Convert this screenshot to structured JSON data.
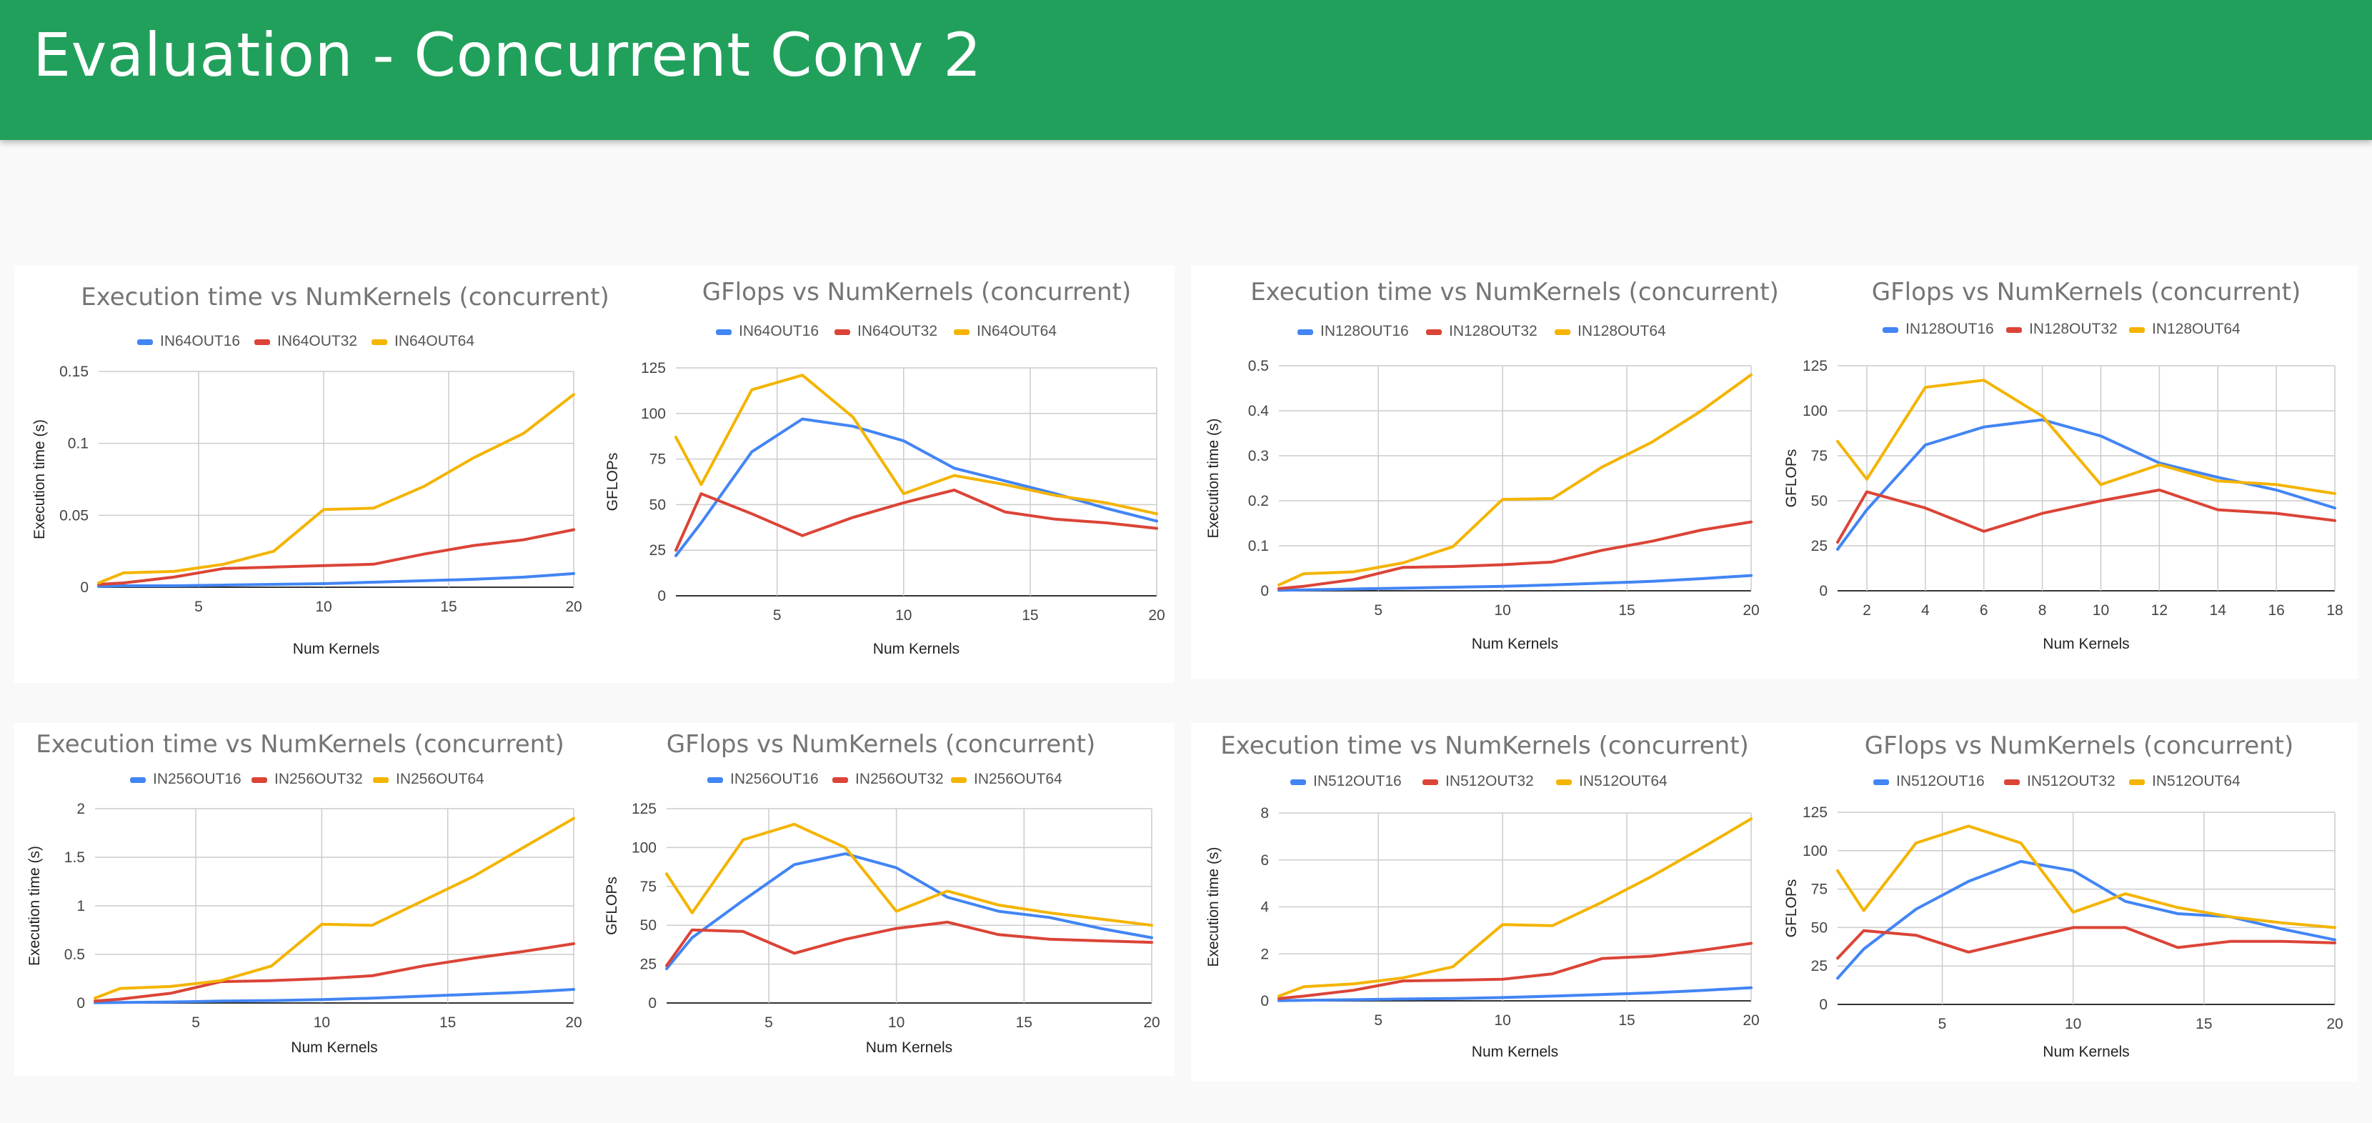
{
  "page": {
    "title": "Evaluation - Concurrent Conv 2"
  },
  "colors": {
    "s16": "#4285f4",
    "s32": "#db4437",
    "s64": "#f4b400",
    "header": "#21a05c"
  },
  "chart_data": [
    {
      "type": "line",
      "title": "Execution time vs NumKernels (concurrent)",
      "xlabel": "Num Kernels",
      "ylabel": "Execution time (s)",
      "xlim": [
        1,
        20
      ],
      "ylim": [
        0,
        0.15
      ],
      "xticks": [
        5,
        10,
        15,
        20
      ],
      "yticks": [
        0,
        0.05,
        0.1,
        0.15
      ],
      "ytick_labels": [
        "0",
        "0.05",
        "0.1",
        "0.15"
      ],
      "x": [
        1,
        2,
        4,
        6,
        8,
        10,
        12,
        14,
        16,
        18,
        20
      ],
      "series": [
        {
          "name": "IN64OUT16",
          "values": [
            0.0005,
            0.001,
            0.001,
            0.0015,
            0.002,
            0.0025,
            0.0035,
            0.0045,
            0.0055,
            0.007,
            0.0095
          ]
        },
        {
          "name": "IN64OUT32",
          "values": [
            0.002,
            0.003,
            0.007,
            0.013,
            0.014,
            0.015,
            0.016,
            0.023,
            0.029,
            0.033,
            0.04
          ]
        },
        {
          "name": "IN64OUT64",
          "values": [
            0.003,
            0.01,
            0.011,
            0.016,
            0.025,
            0.054,
            0.055,
            0.07,
            0.09,
            0.107,
            0.134
          ]
        }
      ]
    },
    {
      "type": "line",
      "title": "GFlops vs NumKernels (concurrent)",
      "xlabel": "Num Kernels",
      "ylabel": "GFLOPs",
      "xlim": [
        1,
        20
      ],
      "ylim": [
        0,
        125
      ],
      "xticks": [
        5,
        10,
        15,
        20
      ],
      "yticks": [
        0,
        25,
        50,
        75,
        100,
        125
      ],
      "ytick_labels": [
        "0",
        "25",
        "50",
        "75",
        "100",
        "125"
      ],
      "x": [
        1,
        2,
        4,
        6,
        8,
        10,
        12,
        14,
        16,
        18,
        20
      ],
      "series": [
        {
          "name": "IN64OUT16",
          "values": [
            22,
            40,
            79,
            97,
            93,
            85,
            70,
            63,
            56,
            48,
            41
          ]
        },
        {
          "name": "IN64OUT32",
          "values": [
            25,
            56,
            45,
            33,
            43,
            51,
            58,
            46,
            42,
            40,
            37
          ]
        },
        {
          "name": "IN64OUT64",
          "values": [
            87,
            61,
            113,
            121,
            98,
            56,
            66,
            61,
            55,
            51,
            45
          ]
        }
      ]
    },
    {
      "type": "line",
      "title": "Execution time vs NumKernels (concurrent)",
      "xlabel": "Num Kernels",
      "ylabel": "Execution time (s)",
      "xlim": [
        1,
        20
      ],
      "ylim": [
        0,
        0.5
      ],
      "xticks": [
        5,
        10,
        15,
        20
      ],
      "yticks": [
        0,
        0.1,
        0.2,
        0.3,
        0.4,
        0.5
      ],
      "ytick_labels": [
        "0",
        "0.1",
        "0.2",
        "0.3",
        "0.4",
        "0.5"
      ],
      "x": [
        1,
        2,
        4,
        6,
        8,
        10,
        12,
        14,
        16,
        18,
        20
      ],
      "series": [
        {
          "name": "IN128OUT16",
          "values": [
            0.001,
            0.002,
            0.004,
            0.006,
            0.008,
            0.01,
            0.013,
            0.017,
            0.021,
            0.027,
            0.034
          ]
        },
        {
          "name": "IN128OUT32",
          "values": [
            0.005,
            0.01,
            0.025,
            0.052,
            0.054,
            0.058,
            0.064,
            0.09,
            0.11,
            0.135,
            0.153
          ]
        },
        {
          "name": "IN128OUT64",
          "values": [
            0.013,
            0.038,
            0.042,
            0.062,
            0.098,
            0.203,
            0.205,
            0.275,
            0.33,
            0.4,
            0.48
          ]
        }
      ]
    },
    {
      "type": "line",
      "title": "GFlops vs NumKernels (concurrent)",
      "xlabel": "Num Kernels",
      "ylabel": "GFLOPs",
      "xlim": [
        1,
        18
      ],
      "ylim": [
        0,
        125
      ],
      "xticks": [
        2,
        4,
        6,
        8,
        10,
        12,
        14,
        16,
        18
      ],
      "yticks": [
        0,
        25,
        50,
        75,
        100,
        125
      ],
      "ytick_labels": [
        "0",
        "25",
        "50",
        "75",
        "100",
        "125"
      ],
      "x": [
        1,
        2,
        4,
        6,
        8,
        10,
        12,
        14,
        16,
        18
      ],
      "series": [
        {
          "name": "IN128OUT16",
          "values": [
            23,
            45,
            81,
            91,
            95,
            86,
            71,
            63,
            56,
            46
          ]
        },
        {
          "name": "IN128OUT32",
          "values": [
            27,
            55,
            46,
            33,
            43,
            50,
            56,
            45,
            43,
            39
          ]
        },
        {
          "name": "IN128OUT64",
          "values": [
            83,
            62,
            113,
            117,
            97,
            59,
            70,
            61,
            59,
            54
          ]
        }
      ]
    },
    {
      "type": "line",
      "title": "Execution time vs NumKernels (concurrent)",
      "xlabel": "Num Kernels",
      "ylabel": "Execution time (s)",
      "xlim": [
        1,
        20
      ],
      "ylim": [
        0,
        2
      ],
      "xticks": [
        5,
        10,
        15,
        20
      ],
      "yticks": [
        0,
        0.5,
        1,
        1.5,
        2
      ],
      "ytick_labels": [
        "0",
        "0.5",
        "1",
        "1.5",
        "2"
      ],
      "x": [
        1,
        2,
        4,
        6,
        8,
        10,
        12,
        14,
        16,
        18,
        20
      ],
      "series": [
        {
          "name": "IN256OUT16",
          "values": [
            0.003,
            0.005,
            0.01,
            0.02,
            0.025,
            0.035,
            0.05,
            0.07,
            0.09,
            0.11,
            0.14
          ]
        },
        {
          "name": "IN256OUT32",
          "values": [
            0.02,
            0.04,
            0.1,
            0.22,
            0.23,
            0.25,
            0.28,
            0.38,
            0.46,
            0.53,
            0.61
          ]
        },
        {
          "name": "IN256OUT64",
          "values": [
            0.05,
            0.15,
            0.17,
            0.23,
            0.38,
            0.81,
            0.8,
            1.05,
            1.3,
            1.6,
            1.9
          ]
        }
      ]
    },
    {
      "type": "line",
      "title": "GFlops vs NumKernels (concurrent)",
      "xlabel": "Num Kernels",
      "ylabel": "GFLOPs",
      "xlim": [
        1,
        20
      ],
      "ylim": [
        0,
        125
      ],
      "xticks": [
        5,
        10,
        15,
        20
      ],
      "yticks": [
        0,
        25,
        50,
        75,
        100,
        125
      ],
      "ytick_labels": [
        "0",
        "25",
        "50",
        "75",
        "100",
        "125"
      ],
      "x": [
        1,
        2,
        4,
        6,
        8,
        10,
        12,
        14,
        16,
        18,
        20
      ],
      "series": [
        {
          "name": "IN256OUT16",
          "values": [
            22,
            42,
            66,
            89,
            96,
            87,
            68,
            59,
            55,
            48,
            42
          ]
        },
        {
          "name": "IN256OUT32",
          "values": [
            24,
            47,
            46,
            32,
            41,
            48,
            52,
            44,
            41,
            40,
            39
          ]
        },
        {
          "name": "IN256OUT64",
          "values": [
            83,
            58,
            105,
            115,
            100,
            59,
            72,
            63,
            58,
            54,
            50
          ]
        }
      ]
    },
    {
      "type": "line",
      "title": "Execution time vs NumKernels (concurrent)",
      "xlabel": "Num Kernels",
      "ylabel": "Execution time (s)",
      "xlim": [
        1,
        20
      ],
      "ylim": [
        0,
        8
      ],
      "xticks": [
        5,
        10,
        15,
        20
      ],
      "yticks": [
        0,
        2,
        4,
        6,
        8
      ],
      "ytick_labels": [
        "0",
        "2",
        "4",
        "6",
        "8"
      ],
      "x": [
        1,
        2,
        4,
        6,
        8,
        10,
        12,
        14,
        16,
        18,
        20
      ],
      "series": [
        {
          "name": "IN512OUT16",
          "values": [
            0.01,
            0.02,
            0.05,
            0.08,
            0.1,
            0.14,
            0.2,
            0.27,
            0.34,
            0.44,
            0.56
          ]
        },
        {
          "name": "IN512OUT32",
          "values": [
            0.1,
            0.2,
            0.45,
            0.85,
            0.88,
            0.92,
            1.15,
            1.8,
            1.9,
            2.15,
            2.45
          ]
        },
        {
          "name": "IN512OUT64",
          "values": [
            0.2,
            0.6,
            0.72,
            0.98,
            1.45,
            3.25,
            3.2,
            4.2,
            5.3,
            6.5,
            7.75
          ]
        }
      ]
    },
    {
      "type": "line",
      "title": "GFlops vs NumKernels (concurrent)",
      "xlabel": "Num Kernels",
      "ylabel": "GFLOPs",
      "xlim": [
        1,
        20
      ],
      "ylim": [
        0,
        125
      ],
      "xticks": [
        5,
        10,
        15,
        20
      ],
      "yticks": [
        0,
        25,
        50,
        75,
        100,
        125
      ],
      "ytick_labels": [
        "0",
        "25",
        "50",
        "75",
        "100",
        "125"
      ],
      "x": [
        1,
        2,
        4,
        6,
        8,
        10,
        12,
        14,
        16,
        18,
        20
      ],
      "series": [
        {
          "name": "IN512OUT16",
          "values": [
            17,
            36,
            62,
            80,
            93,
            87,
            67,
            59,
            57,
            49,
            42
          ]
        },
        {
          "name": "IN512OUT32",
          "values": [
            30,
            48,
            45,
            34,
            42,
            50,
            50,
            37,
            41,
            41,
            40
          ]
        },
        {
          "name": "IN512OUT64",
          "values": [
            87,
            61,
            105,
            116,
            105,
            60,
            72,
            63,
            57,
            53,
            50
          ]
        }
      ]
    }
  ]
}
